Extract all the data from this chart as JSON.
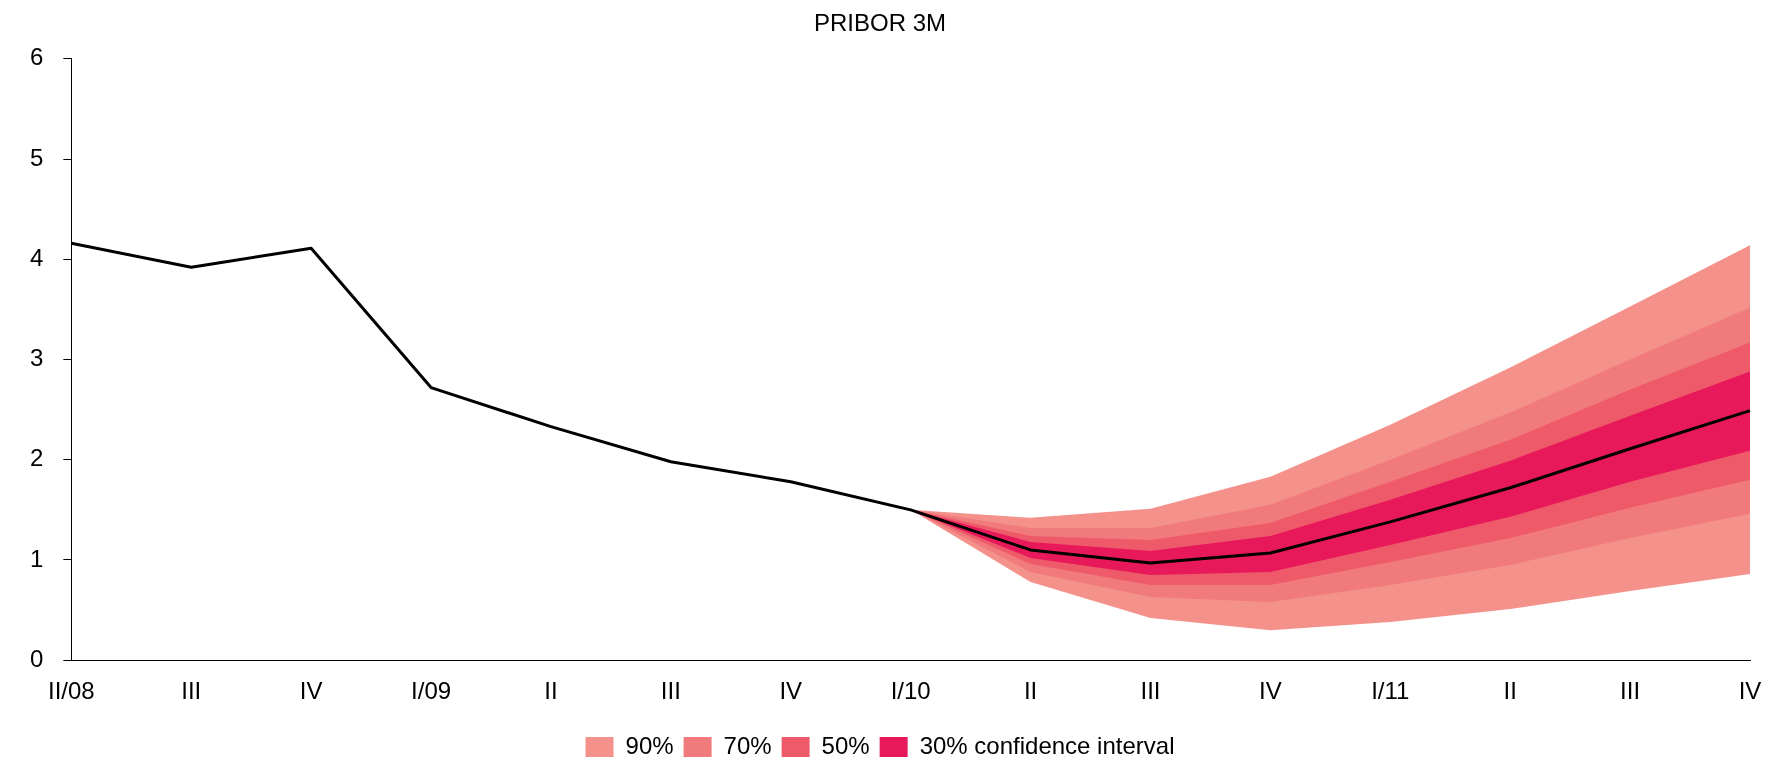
{
  "chart_data": {
    "type": "line",
    "title": "PRIBOR 3M",
    "categories": [
      "II/08",
      "III",
      "IV",
      "I/09",
      "II",
      "III",
      "IV",
      "I/10",
      "II",
      "III",
      "IV",
      "I/11",
      "II",
      "III",
      "IV"
    ],
    "series": [
      {
        "type": "line",
        "name": "90%",
        "color": "#f4918b",
        "values": [
          null,
          null,
          null,
          null,
          null,
          null,
          null,
          null,
          null,
          null,
          null,
          null,
          null,
          null,
          null
        ],
        "lower": [
          null,
          null,
          null,
          null,
          null,
          null,
          null,
          1.5,
          0.78,
          0.42,
          0.3,
          0.38,
          0.51,
          0.69,
          0.86
        ],
        "upper": [
          null,
          null,
          null,
          null,
          null,
          null,
          null,
          1.5,
          1.42,
          1.51,
          1.83,
          2.35,
          2.92,
          3.53,
          4.14
        ]
      },
      {
        "type": "line",
        "name": "70%",
        "color": "#f17a7c",
        "values": [
          null,
          null,
          null,
          null,
          null,
          null,
          null,
          null,
          null,
          null,
          null,
          null,
          null,
          null,
          null
        ],
        "lower": [
          null,
          null,
          null,
          null,
          null,
          null,
          null,
          1.5,
          0.88,
          0.63,
          0.58,
          0.75,
          0.95,
          1.22,
          1.46
        ],
        "upper": [
          null,
          null,
          null,
          null,
          null,
          null,
          null,
          1.5,
          1.32,
          1.32,
          1.55,
          2.0,
          2.47,
          3.0,
          3.52
        ]
      },
      {
        "type": "line",
        "name": "50%",
        "color": "#ef5a6a",
        "values": [
          null,
          null,
          null,
          null,
          null,
          null,
          null,
          null,
          null,
          null,
          null,
          null,
          null,
          null,
          null
        ],
        "lower": [
          null,
          null,
          null,
          null,
          null,
          null,
          null,
          1.5,
          0.96,
          0.75,
          0.75,
          0.98,
          1.22,
          1.52,
          1.8
        ],
        "upper": [
          null,
          null,
          null,
          null,
          null,
          null,
          null,
          1.5,
          1.24,
          1.2,
          1.37,
          1.78,
          2.2,
          2.7,
          3.17
        ]
      },
      {
        "type": "line",
        "name": "30% confidence interval",
        "color": "#e8195a",
        "values": [
          null,
          null,
          null,
          null,
          null,
          null,
          null,
          null,
          null,
          null,
          null,
          null,
          null,
          null,
          null
        ],
        "lower": [
          null,
          null,
          null,
          null,
          null,
          null,
          null,
          1.5,
          1.02,
          0.85,
          0.88,
          1.15,
          1.43,
          1.78,
          2.09
        ],
        "upper": [
          null,
          null,
          null,
          null,
          null,
          null,
          null,
          1.5,
          1.18,
          1.09,
          1.24,
          1.6,
          1.99,
          2.44,
          2.88
        ]
      },
      {
        "type": "line",
        "color": "#000000",
        "values": [
          4.16,
          3.92,
          4.11,
          2.72,
          2.33,
          1.98,
          1.78,
          1.5,
          1.1,
          0.97,
          1.07,
          1.38,
          1.72,
          2.11,
          2.49
        ]
      }
    ],
    "ylim": [
      0,
      6
    ],
    "yticks": [
      0,
      1,
      2,
      3,
      4,
      5,
      6
    ],
    "grid": false,
    "legend": "bottom",
    "marker": "none",
    "line_style": "solid"
  }
}
